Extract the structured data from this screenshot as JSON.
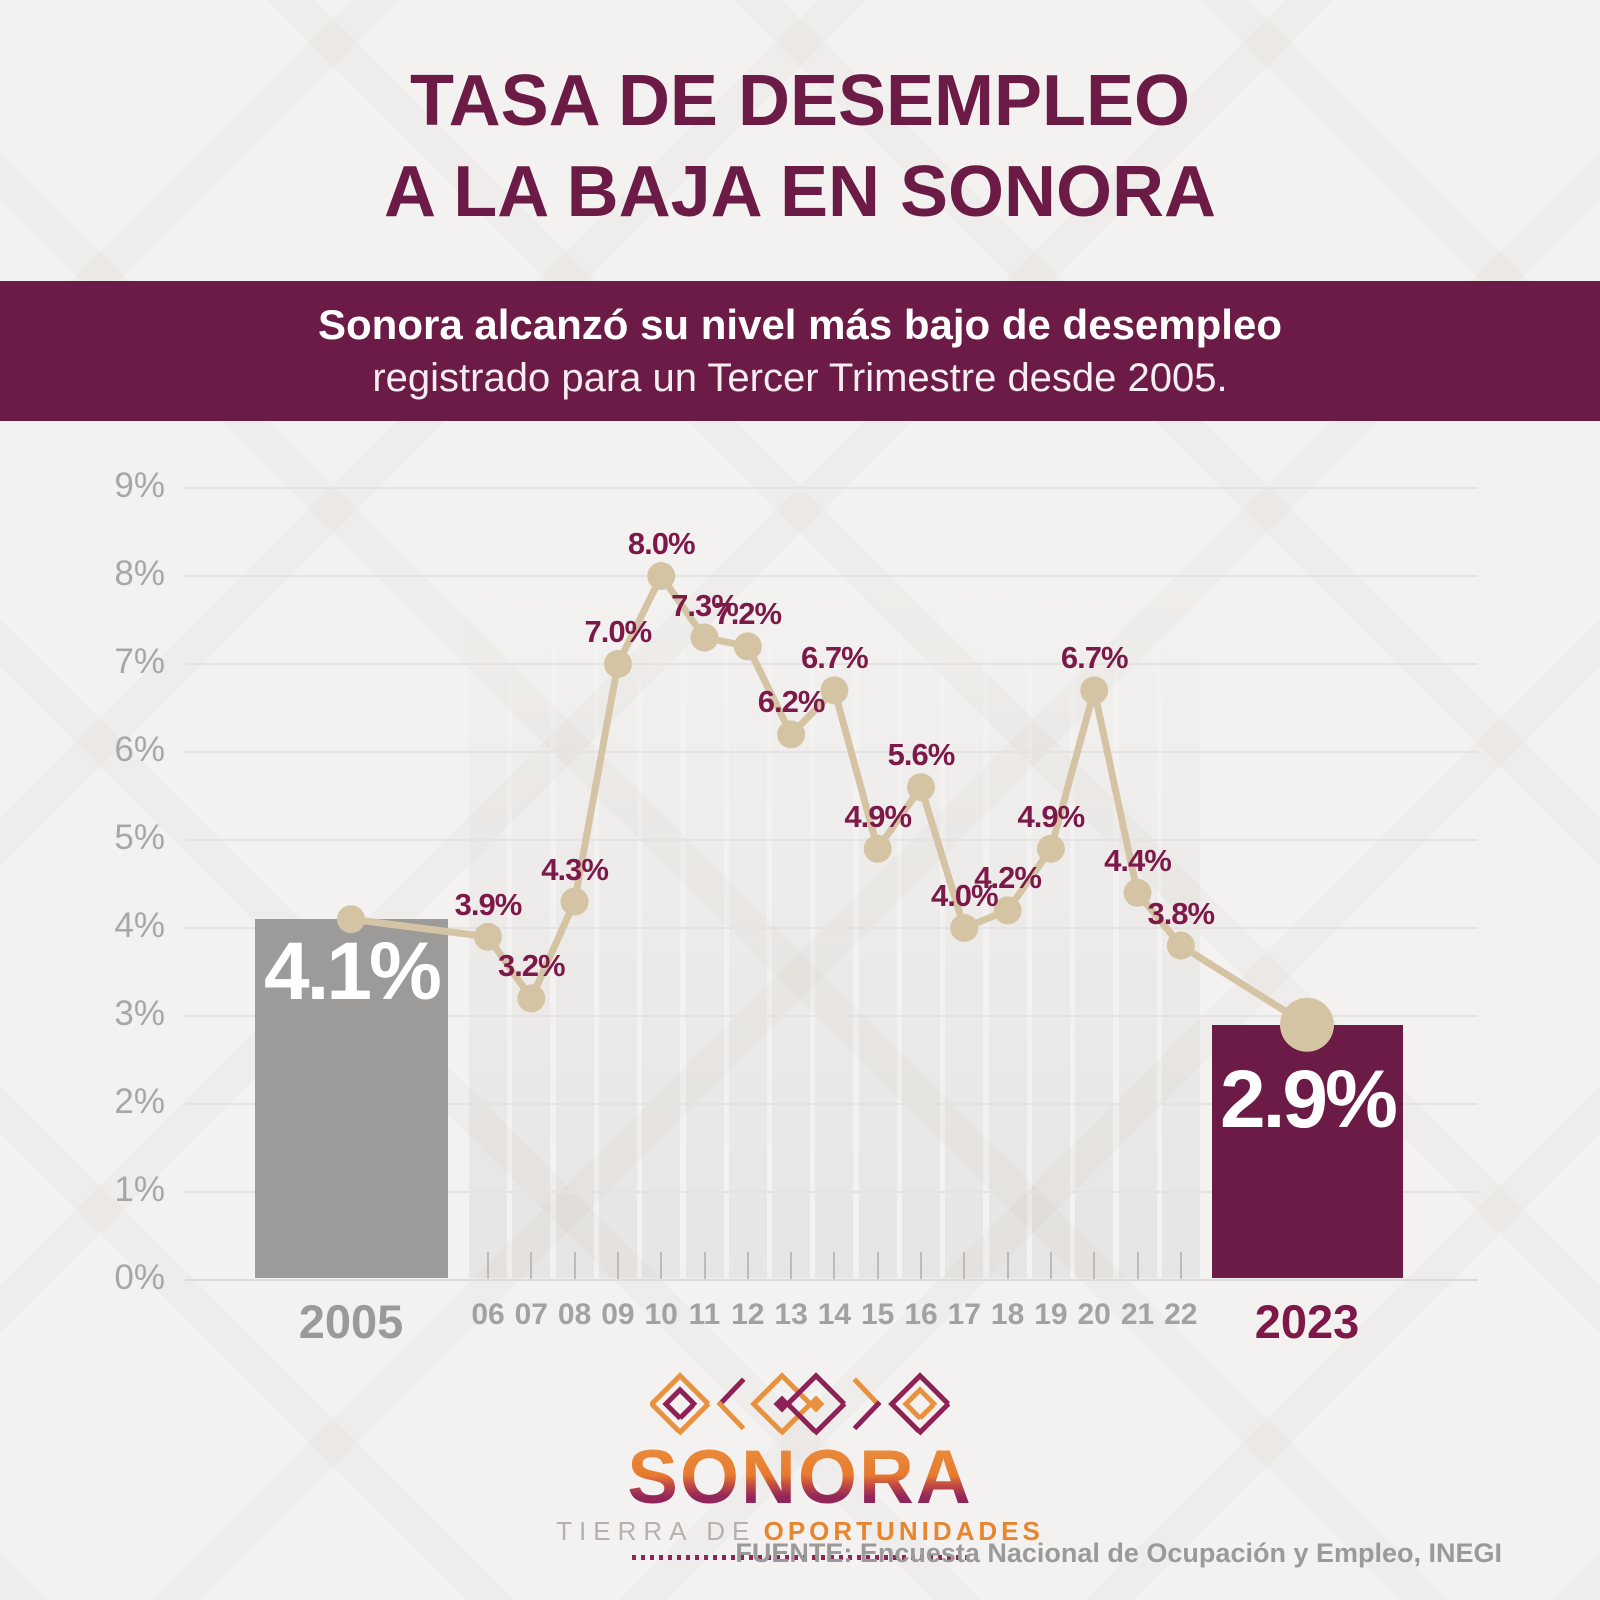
{
  "title": {
    "line1": "TASA DE DESEMPLEO",
    "line2": "A LA BAJA EN SONORA"
  },
  "banner": {
    "line1": "Sonora alcanzó su nivel más bajo de desempleo",
    "line2": "registrado para un Tercer Trimestre desde 2005."
  },
  "chart_data": {
    "type": "line",
    "categories": [
      "2005",
      "06",
      "07",
      "08",
      "09",
      "10",
      "11",
      "12",
      "13",
      "14",
      "15",
      "16",
      "17",
      "18",
      "19",
      "20",
      "21",
      "22",
      "2023"
    ],
    "values": [
      4.1,
      3.9,
      3.2,
      4.3,
      7.0,
      8.0,
      7.3,
      7.2,
      6.2,
      6.7,
      4.9,
      5.6,
      4.0,
      4.2,
      4.9,
      6.7,
      4.4,
      3.8,
      2.9
    ],
    "point_labels": [
      "4.1%",
      "3.9%",
      "3.2%",
      "4.3%",
      "7.0%",
      "8.0%",
      "7.3%",
      "7.2%",
      "6.2%",
      "6.7%",
      "4.9%",
      "5.6%",
      "4.0%",
      "4.2%",
      "4.9%",
      "6.7%",
      "4.4%",
      "3.8%",
      "2.9%"
    ],
    "yticks": [
      "0%",
      "1%",
      "2%",
      "3%",
      "4%",
      "5%",
      "6%",
      "7%",
      "8%",
      "9%"
    ],
    "ylim": [
      0,
      9
    ],
    "grid": true,
    "legend": "none",
    "line_color": "#d5c4a4",
    "point_color": "#d5c4a4",
    "point_label_color": "#7d1949",
    "bars": {
      "start": {
        "category": "2005",
        "value": 4.1,
        "label": "4.1%",
        "color": "#9c9b9a",
        "label_color": "#ffffff"
      },
      "end": {
        "category": "2023",
        "value": 2.9,
        "label": "2.9%",
        "color": "#6b1b45",
        "label_color": "#ffffff"
      }
    }
  },
  "logo": {
    "wordmark": "SONORA",
    "tagline_prefix": "TIERRA DE",
    "tagline_bold": "OPORTUNIDADES",
    "pattern_icons": [
      "nested-diamond",
      "chevron-left",
      "double-diamond",
      "chevron-right",
      "nested-diamond"
    ],
    "orange": "#e8913f",
    "maroon": "#8e2155"
  },
  "source": "FUENTE: Encuesta Nacional de Ocupación y Empleo, INEGI",
  "colors": {
    "background": "#f3f2f1",
    "accent_maroon": "#6b1b45",
    "data_label_maroon": "#7d1949",
    "line_tan": "#d5c4a4",
    "bar_gray": "#9c9b9a",
    "axis_text_gray": "#a8a7a6"
  }
}
